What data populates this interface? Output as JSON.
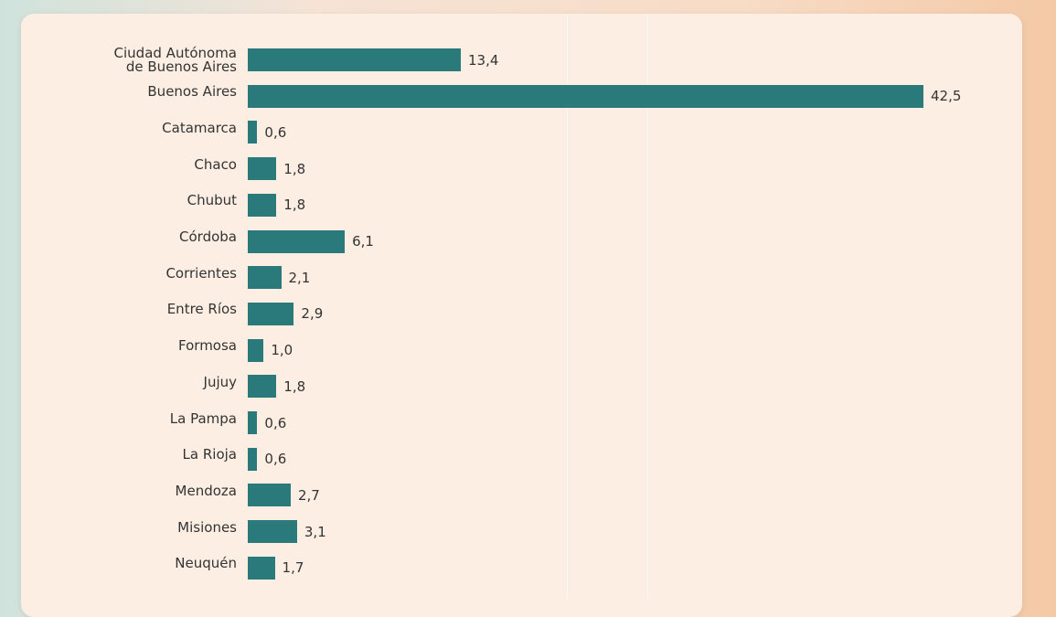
{
  "chart_data": {
    "type": "bar",
    "orientation": "horizontal",
    "categories": [
      "Ciudad Autónoma\nde Buenos Aires",
      "Buenos Aires",
      "Catamarca",
      "Chaco",
      "Chubut",
      "Córdoba",
      "Corrientes",
      "Entre Ríos",
      "Formosa",
      "Jujuy",
      "La Pampa",
      "La Rioja",
      "Mendoza",
      "Misiones",
      "Neuquén"
    ],
    "values": [
      13.4,
      42.5,
      0.6,
      1.8,
      1.8,
      6.1,
      2.1,
      2.9,
      1.0,
      1.8,
      0.6,
      0.6,
      2.7,
      3.1,
      1.7
    ],
    "value_labels": [
      "13,4",
      "42,5",
      "0,6",
      "1,8",
      "1,8",
      "6,1",
      "2,1",
      "2,9",
      "1,0",
      "1,8",
      "0,6",
      "0,6",
      "2,7",
      "3,1",
      "1,7"
    ],
    "color": "#2b7a7b"
  }
}
